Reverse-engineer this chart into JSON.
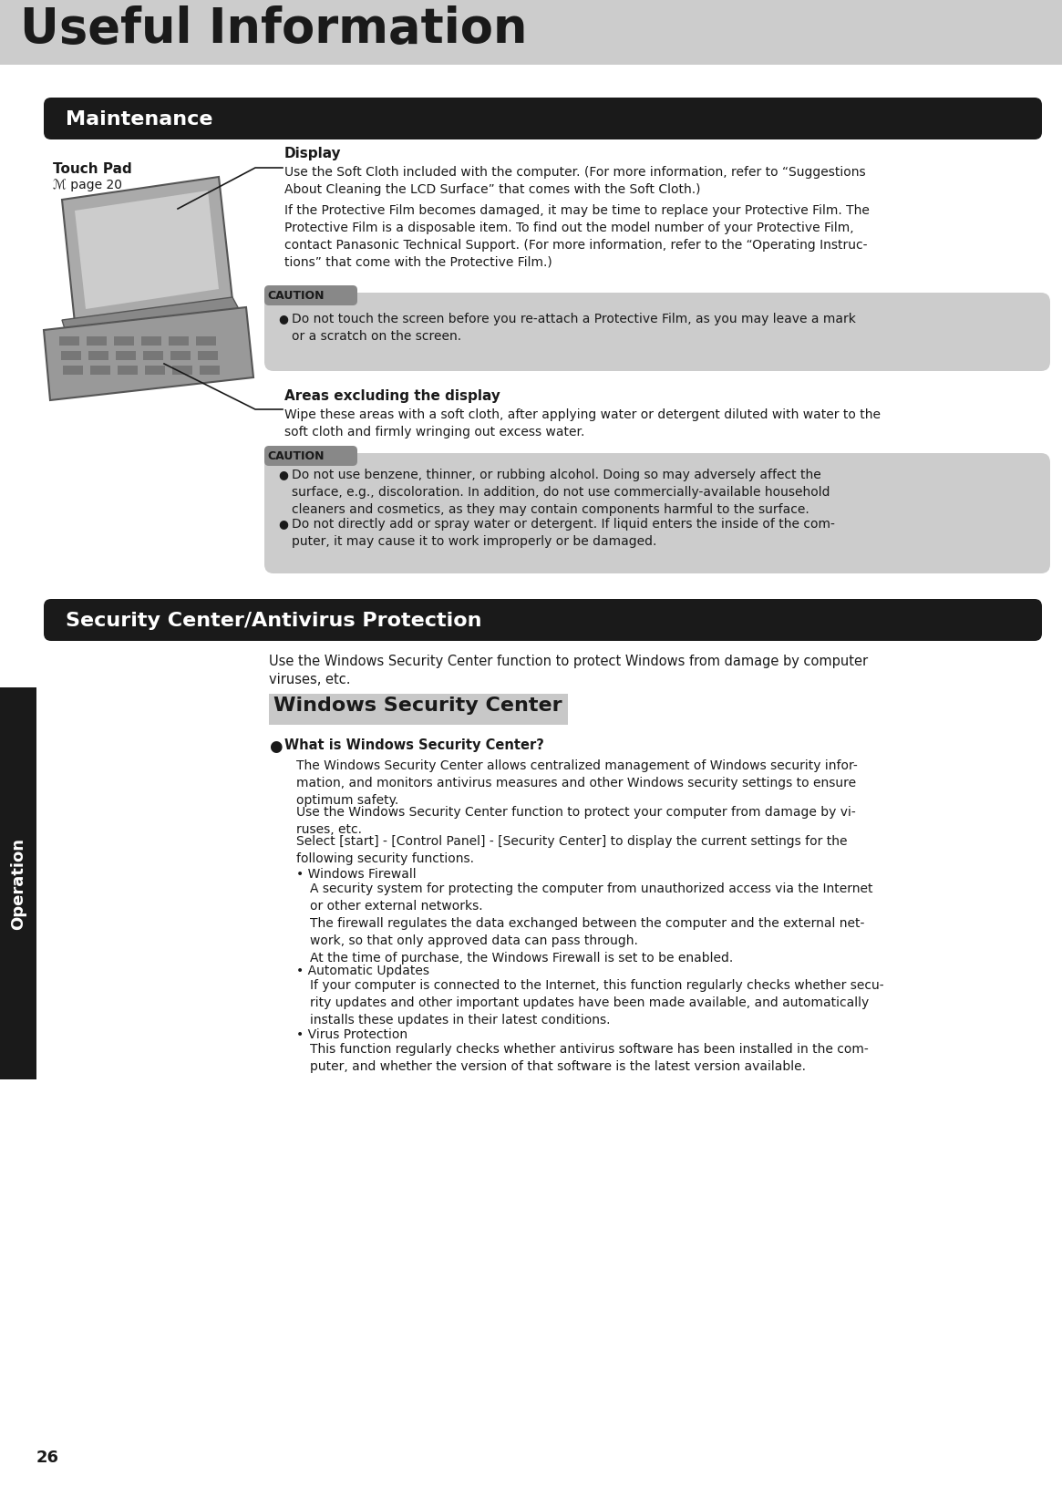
{
  "page_bg": "#ffffff",
  "header_bg": "#cccccc",
  "header_title": "Useful Information",
  "header_title_color": "#1a1a1a",
  "section1_bg": "#1a1a1a",
  "section1_title": "Maintenance",
  "section1_title_color": "#ffffff",
  "section2_bg": "#1a1a1a",
  "section2_title": "Security Center/Antivirus Protection",
  "section2_title_color": "#ffffff",
  "touch_pad_label": "Touch Pad",
  "page_ref": "ℳ page 20",
  "display_heading": "Display",
  "display_text1": "Use the Soft Cloth included with the computer. (For more information, refer to “Suggestions\nAbout Cleaning the LCD Surface” that comes with the Soft Cloth.)",
  "display_text2": "If the Protective Film becomes damaged, it may be time to replace your Protective Film. The\nProtective Film is a disposable item. To find out the model number of your Protective Film,\ncontact Panasonic Technical Support. (For more information, refer to the “Operating Instruc-\ntions” that come with the Protective Film.)",
  "caution1_bullet": "Do not touch the screen before you re-attach a Protective Film, as you may leave a mark\nor a scratch on the screen.",
  "areas_heading": "Areas excluding the display",
  "areas_text": "Wipe these areas with a soft cloth, after applying water or detergent diluted with water to the\nsoft cloth and firmly wringing out excess water.",
  "caution2_bullet1": "Do not use benzene, thinner, or rubbing alcohol. Doing so may adversely affect the\nsurface, e.g., discoloration. In addition, do not use commercially-available household\ncleaners and cosmetics, as they may contain components harmful to the surface.",
  "caution2_bullet2": "Do not directly add or spray water or detergent. If liquid enters the inside of the com-\nputer, it may cause it to work improperly or be damaged.",
  "intro_text": "Use the Windows Security Center function to protect Windows from damage by computer\nviruses, etc.",
  "wsc_title": "Windows Security Center",
  "wsc_subtitle": "What is Windows Security Center?",
  "wsc_text1": "The Windows Security Center allows centralized management of Windows security infor-\nmation, and monitors antivirus measures and other Windows security settings to ensure\noptimum safety.",
  "wsc_text2": "Use the Windows Security Center function to protect your computer from damage by vi-\nruses, etc.",
  "wsc_text3": "Select [start] - [Control Panel] - [Security Center] to display the current settings for the\nfollowing security functions.",
  "wsc_fw_label": "• Windows Firewall",
  "wsc_fw_text": "A security system for protecting the computer from unauthorized access via the Internet\nor other external networks.\nThe firewall regulates the data exchanged between the computer and the external net-\nwork, so that only approved data can pass through.\nAt the time of purchase, the Windows Firewall is set to be enabled.",
  "wsc_au_label": "• Automatic Updates",
  "wsc_au_text": "If your computer is connected to the Internet, this function regularly checks whether secu-\nrity updates and other important updates have been made available, and automatically\ninstalls these updates in their latest conditions.",
  "wsc_vp_label": "• Virus Protection",
  "wsc_vp_text": "This function regularly checks whether antivirus software has been installed in the com-\nputer, and whether the version of that software is the latest version available.",
  "page_number": "26",
  "operation_label": "Operation",
  "caution_bg": "#cccccc",
  "caution_label_bg": "#888888",
  "caution_label_text": "CAUTION",
  "sidebar_bg": "#1a1a1a"
}
